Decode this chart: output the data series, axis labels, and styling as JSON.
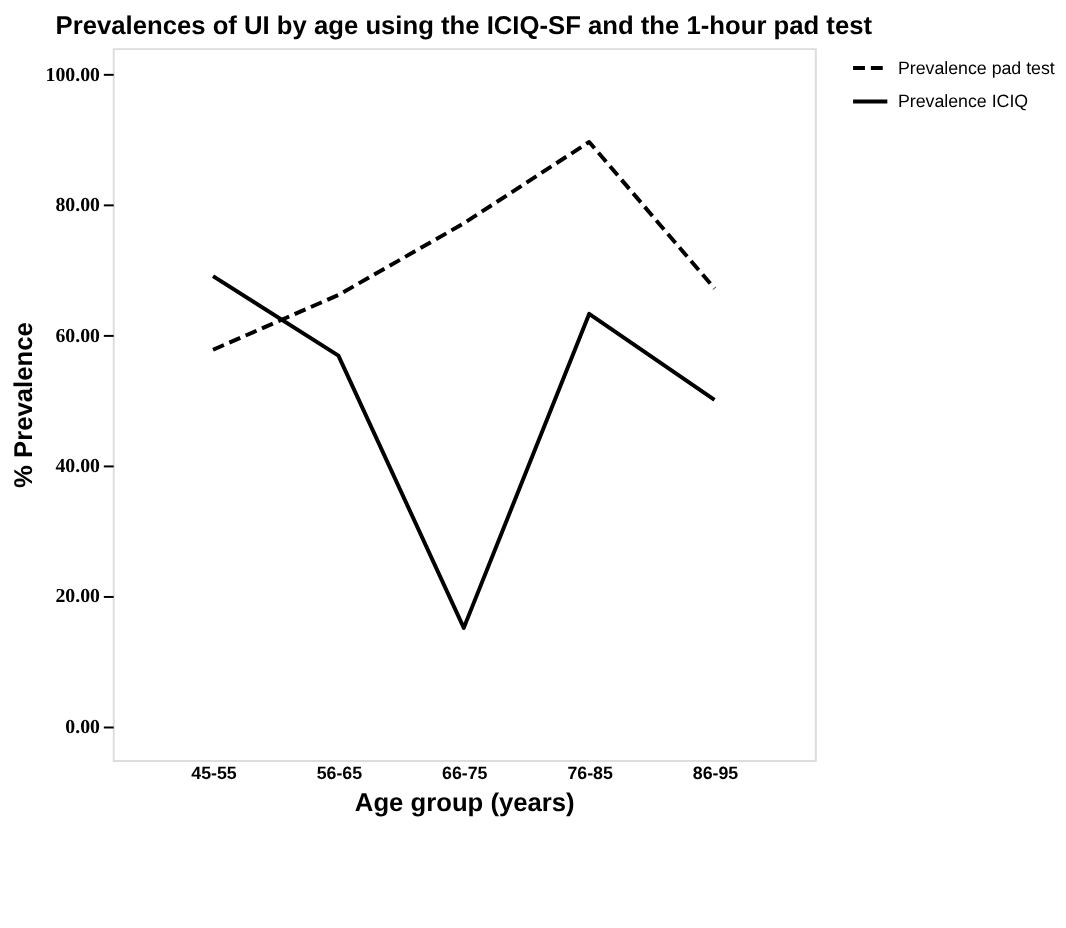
{
  "chart_data": {
    "type": "line",
    "title": "Prevalences of UI by age using the ICIQ-SF and the 1-hour pad test",
    "xlabel": "Age group (years)",
    "ylabel": "% Prevalence",
    "categories": [
      "45-55",
      "56-65",
      "66-75",
      "76-85",
      "86-95"
    ],
    "series": [
      {
        "name": "Prevalence pad test",
        "color": "#000000",
        "line_style": "dashed",
        "values": [
          57.7,
          66.1,
          77.1,
          89.6,
          67.1
        ]
      },
      {
        "name": "Prevalence ICIQ",
        "color": "#000000",
        "line_style": "solid",
        "values": [
          69.0,
          56.8,
          15.0,
          63.2,
          50.0
        ]
      }
    ],
    "ylim": [
      -5.3,
      104
    ],
    "yticks": [
      {
        "value": 0,
        "label": "0.00"
      },
      {
        "value": 20,
        "label": "20.00"
      },
      {
        "value": 40,
        "label": "40.00"
      },
      {
        "value": 60,
        "label": "60.00"
      },
      {
        "value": 80,
        "label": "80.00"
      },
      {
        "value": 100,
        "label": "100.00"
      }
    ],
    "grid": false,
    "legend": "top right",
    "marker": "none"
  }
}
